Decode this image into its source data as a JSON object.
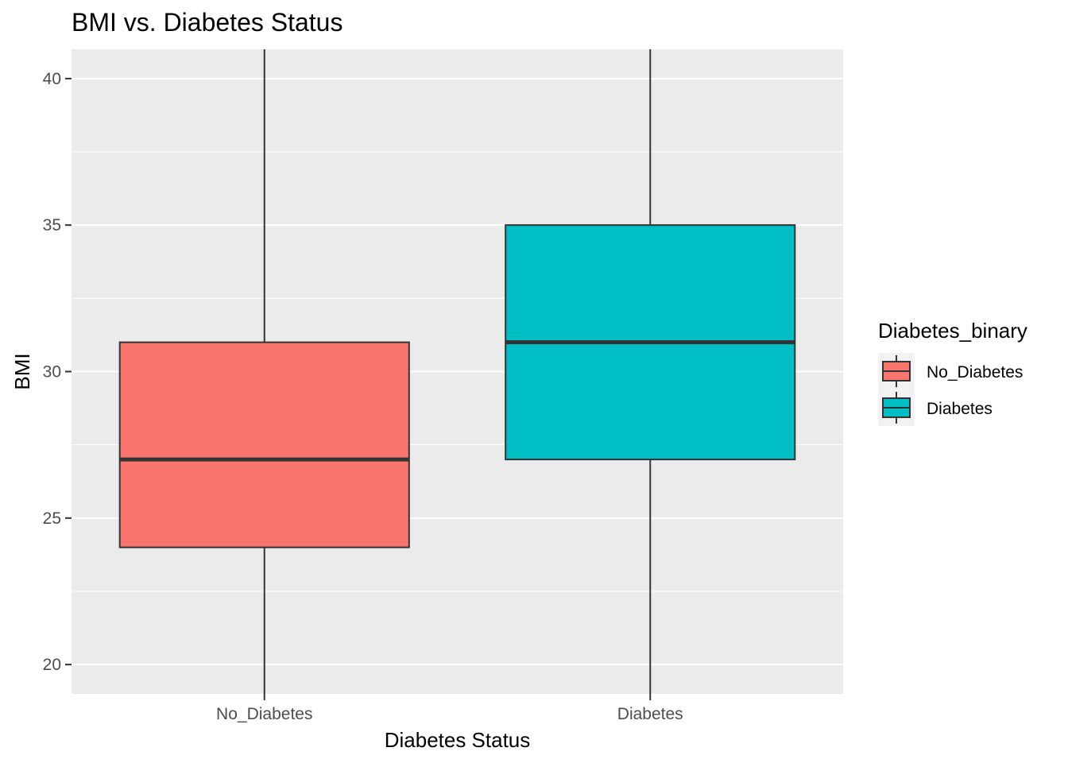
{
  "chart_data": {
    "type": "boxplot",
    "title": "BMI vs. Diabetes Status",
    "xlabel": "Diabetes Status",
    "ylabel": "BMI",
    "categories": [
      "No_Diabetes",
      "Diabetes"
    ],
    "boxes": [
      {
        "category": "No_Diabetes",
        "whisker_low": 19.0,
        "q1": 24,
        "median": 27,
        "q3": 31,
        "whisker_high": 41.0,
        "color": "#F8766D"
      },
      {
        "category": "Diabetes",
        "whisker_low": 19.0,
        "q1": 27,
        "median": 31,
        "q3": 35,
        "whisker_high": 41.0,
        "color": "#00BFC4"
      }
    ],
    "ylim": [
      19.0,
      41.0
    ],
    "yticks": [
      20,
      25,
      30,
      35,
      40
    ],
    "ytick_labels": [
      "20",
      "25",
      "30",
      "35",
      "40"
    ],
    "grid": true,
    "legend": {
      "title": "Diabetes_binary",
      "placement": "right",
      "entries": [
        {
          "label": "No_Diabetes",
          "color": "#F8766D"
        },
        {
          "label": "Diabetes",
          "color": "#00BFC4"
        }
      ]
    },
    "panel_background": "#EBEBEB"
  }
}
